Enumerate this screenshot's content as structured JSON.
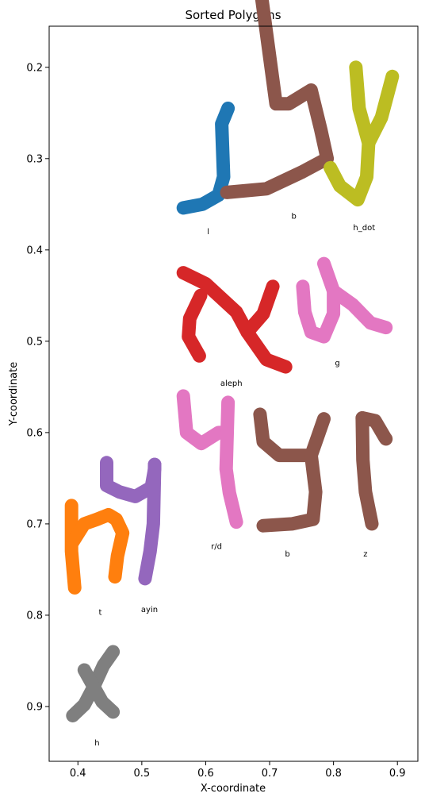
{
  "chart_data": {
    "type": "scatter",
    "title": "Sorted Polygons",
    "xlabel": "X-coordinate",
    "ylabel": "Y-coordinate",
    "xlim": [
      0.355,
      0.932
    ],
    "ylim": [
      0.96,
      0.155
    ],
    "y_inverted": true,
    "grid": false,
    "xticks": [
      0.4,
      0.5,
      0.6,
      0.7,
      0.8,
      0.9
    ],
    "xtick_labels": [
      "0.4",
      "0.5",
      "0.6",
      "0.7",
      "0.8",
      "0.9"
    ],
    "yticks": [
      0.2,
      0.3,
      0.4,
      0.5,
      0.6,
      0.7,
      0.8,
      0.9
    ],
    "ytick_labels": [
      "0.2",
      "0.3",
      "0.4",
      "0.5",
      "0.6",
      "0.7",
      "0.8",
      "0.9"
    ],
    "polygons": [
      {
        "label": "l",
        "color": "#1f77b4",
        "label_pos": [
          0.604,
          0.38
        ],
        "path": [
          [
            0.635,
            0.245
          ],
          [
            0.625,
            0.262
          ],
          [
            0.628,
            0.32
          ],
          [
            0.62,
            0.34
          ],
          [
            0.595,
            0.35
          ],
          [
            0.565,
            0.354
          ]
        ]
      },
      {
        "label": "b",
        "color": "#8c564b",
        "label_pos": [
          0.738,
          0.363
        ],
        "path": [
          [
            0.685,
            0.11
          ],
          [
            0.71,
            0.24
          ],
          [
            0.73,
            0.24
          ],
          [
            0.765,
            0.225
          ],
          [
            0.78,
            0.268
          ],
          [
            0.79,
            0.3
          ],
          [
            0.75,
            0.315
          ],
          [
            0.695,
            0.333
          ],
          [
            0.633,
            0.337
          ]
        ]
      },
      {
        "label": "h_dot",
        "color": "#bcbd22",
        "label_pos": [
          0.848,
          0.376
        ],
        "path": [
          [
            0.835,
            0.2
          ],
          [
            0.84,
            0.245
          ],
          [
            0.855,
            0.283
          ],
          [
            0.852,
            0.32
          ],
          [
            0.838,
            0.345
          ],
          [
            0.81,
            0.33
          ],
          [
            0.795,
            0.31
          ]
        ]
      },
      {
        "label": "h_dot",
        "color": "#bcbd22",
        "label_pos": [
          null,
          null
        ],
        "path": [
          [
            0.855,
            0.283
          ],
          [
            0.875,
            0.255
          ],
          [
            0.892,
            0.21
          ]
        ]
      },
      {
        "label": "aleph",
        "color": "#d62728",
        "label_pos": [
          0.64,
          0.546
        ],
        "path": [
          [
            0.565,
            0.425
          ],
          [
            0.6,
            0.437
          ],
          [
            0.648,
            0.468
          ],
          [
            0.665,
            0.49
          ],
          [
            0.695,
            0.52
          ],
          [
            0.725,
            0.528
          ]
        ]
      },
      {
        "label": "aleph",
        "color": "#d62728",
        "label_pos": [
          null,
          null
        ],
        "path": [
          [
            0.592,
            0.45
          ],
          [
            0.575,
            0.475
          ],
          [
            0.573,
            0.495
          ],
          [
            0.59,
            0.516
          ]
        ]
      },
      {
        "label": "aleph",
        "color": "#d62728",
        "label_pos": [
          null,
          null
        ],
        "path": [
          [
            0.665,
            0.49
          ],
          [
            0.69,
            0.47
          ],
          [
            0.705,
            0.44
          ]
        ]
      },
      {
        "label": "g",
        "color": "#e377c2",
        "label_pos": [
          0.806,
          0.524
        ],
        "path": [
          [
            0.752,
            0.44
          ],
          [
            0.755,
            0.468
          ],
          [
            0.765,
            0.49
          ],
          [
            0.785,
            0.495
          ],
          [
            0.8,
            0.47
          ],
          [
            0.8,
            0.445
          ],
          [
            0.785,
            0.415
          ]
        ]
      },
      {
        "label": "g",
        "color": "#e377c2",
        "label_pos": [
          null,
          null
        ],
        "path": [
          [
            0.8,
            0.445
          ],
          [
            0.83,
            0.46
          ],
          [
            0.858,
            0.48
          ],
          [
            0.882,
            0.485
          ]
        ]
      },
      {
        "label": "r/d",
        "color": "#e377c2",
        "label_pos": [
          0.617,
          0.725
        ],
        "path": [
          [
            0.565,
            0.56
          ],
          [
            0.57,
            0.6
          ],
          [
            0.593,
            0.612
          ],
          [
            0.62,
            0.6
          ],
          [
            0.633,
            0.6
          ]
        ]
      },
      {
        "label": "r/d",
        "color": "#e377c2",
        "label_pos": [
          null,
          null
        ],
        "path": [
          [
            0.635,
            0.567
          ],
          [
            0.632,
            0.64
          ],
          [
            0.637,
            0.666
          ],
          [
            0.648,
            0.698
          ]
        ]
      },
      {
        "label": "b",
        "color": "#8c564b",
        "label_pos": [
          0.728,
          0.733
        ],
        "path": [
          [
            0.685,
            0.58
          ],
          [
            0.69,
            0.61
          ],
          [
            0.715,
            0.625
          ],
          [
            0.765,
            0.625
          ],
          [
            0.772,
            0.665
          ],
          [
            0.768,
            0.695
          ],
          [
            0.735,
            0.7
          ],
          [
            0.69,
            0.702
          ]
        ]
      },
      {
        "label": "b",
        "color": "#8c564b",
        "label_pos": [
          null,
          null
        ],
        "path": [
          [
            0.765,
            0.625
          ],
          [
            0.775,
            0.605
          ],
          [
            0.785,
            0.585
          ]
        ]
      },
      {
        "label": "z",
        "color": "#8c564b",
        "label_pos": [
          0.85,
          0.733
        ],
        "path": [
          [
            0.845,
            0.584
          ],
          [
            0.865,
            0.587
          ],
          [
            0.88,
            0.605
          ],
          [
            0.882,
            0.607
          ]
        ]
      },
      {
        "label": "z",
        "color": "#8c564b",
        "label_pos": [
          null,
          null
        ],
        "path": [
          [
            0.845,
            0.584
          ],
          [
            0.846,
            0.63
          ],
          [
            0.85,
            0.665
          ],
          [
            0.86,
            0.7
          ]
        ]
      },
      {
        "label": "t",
        "color": "#ff7f0e",
        "label_pos": [
          0.435,
          0.797
        ],
        "path": [
          [
            0.39,
            0.68
          ],
          [
            0.39,
            0.73
          ],
          [
            0.395,
            0.77
          ]
        ]
      },
      {
        "label": "t",
        "color": "#ff7f0e",
        "label_pos": [
          null,
          null
        ],
        "path": [
          [
            0.392,
            0.72
          ],
          [
            0.41,
            0.7
          ],
          [
            0.43,
            0.695
          ],
          [
            0.448,
            0.69
          ],
          [
            0.46,
            0.695
          ],
          [
            0.47,
            0.71
          ],
          [
            0.462,
            0.735
          ],
          [
            0.458,
            0.758
          ]
        ]
      },
      {
        "label": "ayin",
        "color": "#9467bd",
        "label_pos": [
          0.512,
          0.794
        ],
        "path": [
          [
            0.445,
            0.633
          ],
          [
            0.445,
            0.658
          ],
          [
            0.465,
            0.665
          ],
          [
            0.49,
            0.67
          ],
          [
            0.515,
            0.66
          ],
          [
            0.52,
            0.64
          ],
          [
            0.52,
            0.635
          ]
        ]
      },
      {
        "label": "ayin",
        "color": "#9467bd",
        "label_pos": [
          null,
          null
        ],
        "path": [
          [
            0.52,
            0.635
          ],
          [
            0.518,
            0.7
          ],
          [
            0.513,
            0.73
          ],
          [
            0.505,
            0.76
          ]
        ]
      },
      {
        "label": "h",
        "color": "#7f7f7f",
        "label_pos": [
          0.43,
          0.94
        ],
        "path": [
          [
            0.392,
            0.91
          ],
          [
            0.41,
            0.898
          ],
          [
            0.425,
            0.878
          ],
          [
            0.44,
            0.855
          ],
          [
            0.455,
            0.84
          ]
        ]
      },
      {
        "label": "h",
        "color": "#7f7f7f",
        "label_pos": [
          null,
          null
        ],
        "path": [
          [
            0.41,
            0.86
          ],
          [
            0.422,
            0.875
          ],
          [
            0.438,
            0.895
          ],
          [
            0.455,
            0.906
          ]
        ]
      }
    ]
  }
}
